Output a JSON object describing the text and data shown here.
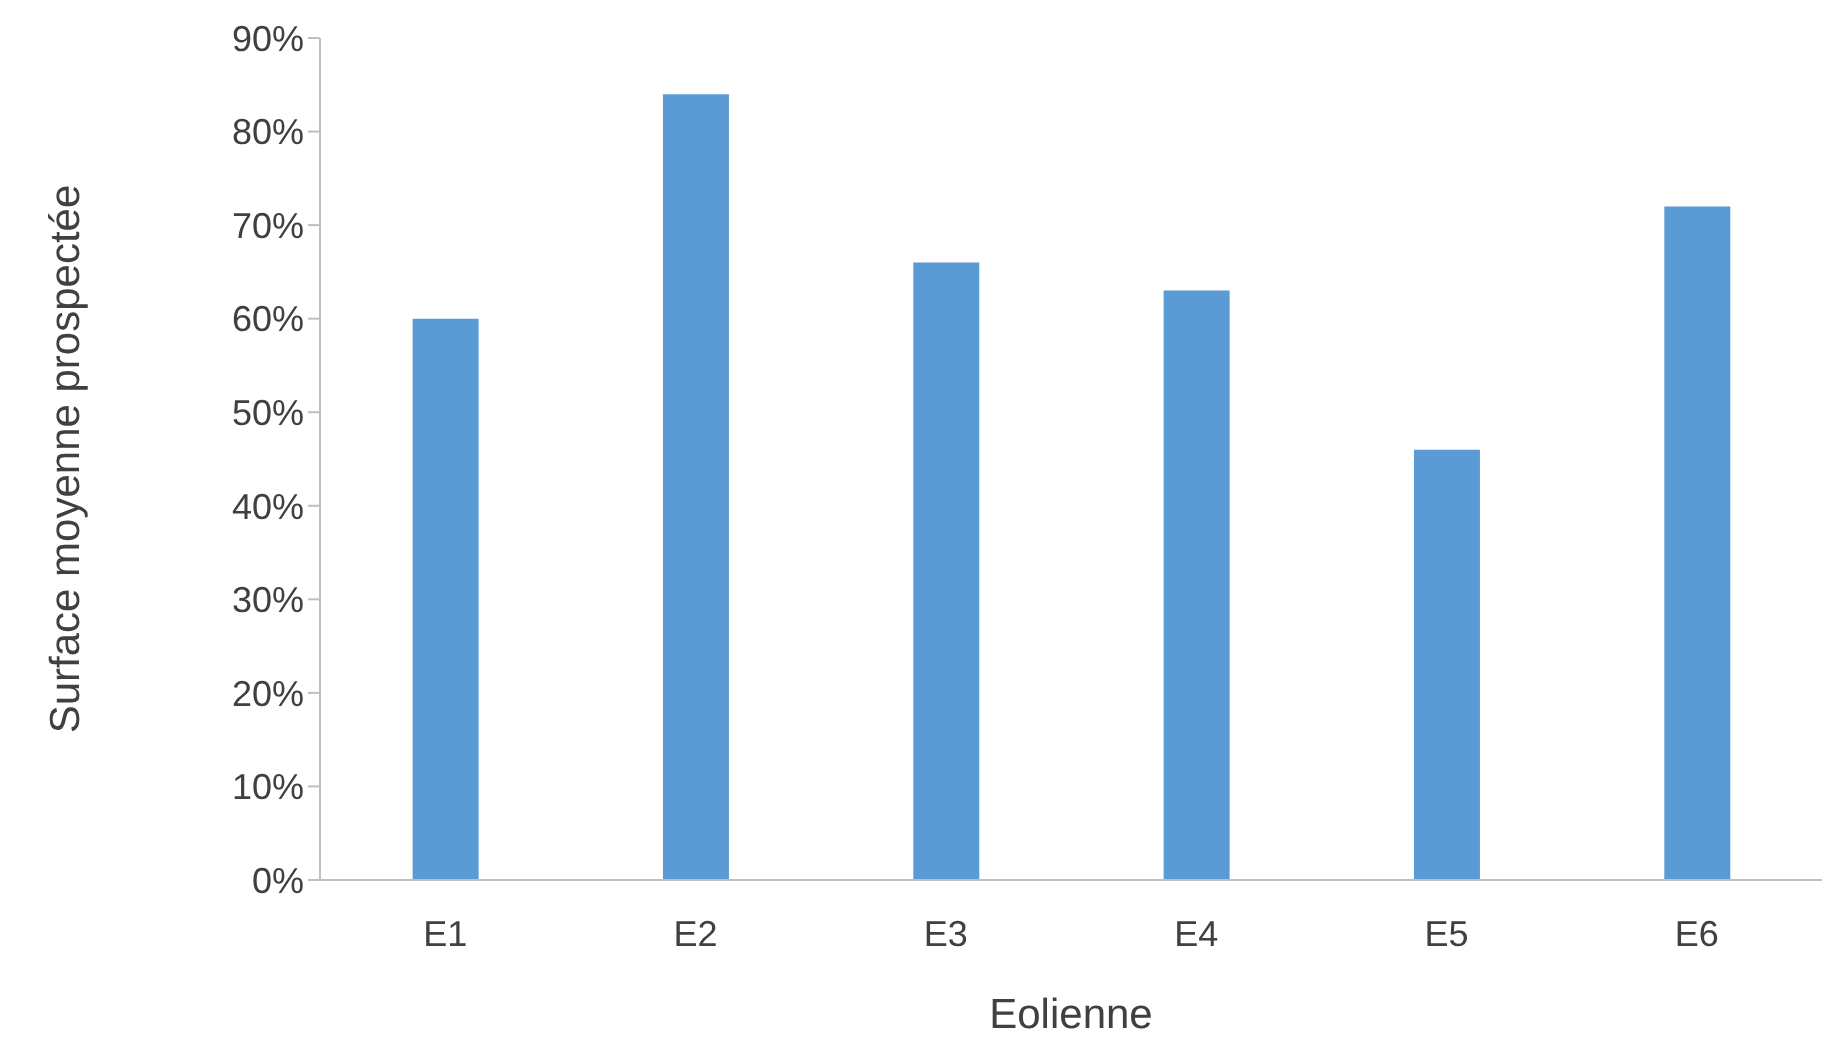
{
  "chart_data": {
    "type": "bar",
    "xlabel": "Eolienne",
    "ylabel": "Surface moyenne prospectée",
    "categories": [
      "E1",
      "E2",
      "E3",
      "E4",
      "E5",
      "E6"
    ],
    "values": [
      60,
      84,
      66,
      63,
      46,
      72
    ],
    "color": "#5b9bd5",
    "ylim": [
      0,
      90
    ],
    "yticks": [
      {
        "value": 0,
        "label": "0%"
      },
      {
        "value": 10,
        "label": "10%"
      },
      {
        "value": 20,
        "label": "20%"
      },
      {
        "value": 30,
        "label": "30%"
      },
      {
        "value": 40,
        "label": "40%"
      },
      {
        "value": 50,
        "label": "50%"
      },
      {
        "value": 60,
        "label": "60%"
      },
      {
        "value": 70,
        "label": "70%"
      },
      {
        "value": 80,
        "label": "80%"
      },
      {
        "value": 90,
        "label": "90%"
      }
    ],
    "grid": false,
    "legend": false
  }
}
